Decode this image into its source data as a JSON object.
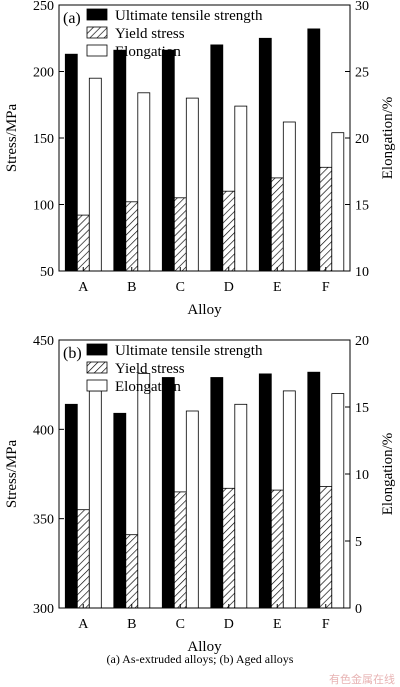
{
  "caption": "(a) As-extruded alloys; (b) Aged alloys",
  "watermark": "有色金属在线",
  "chart_data": [
    {
      "type": "bar",
      "panel_label": "(a)",
      "categories": [
        "A",
        "B",
        "C",
        "D",
        "E",
        "F"
      ],
      "series": [
        {
          "name": "Ultimate tensile strength",
          "axis": "left",
          "fill": "solid",
          "values": [
            213,
            216,
            216,
            220,
            225,
            232
          ]
        },
        {
          "name": "Yield stress",
          "axis": "left",
          "fill": "hatched",
          "values": [
            92,
            102,
            105,
            110,
            120,
            128
          ]
        },
        {
          "name": "Elongation",
          "axis": "right",
          "fill": "open",
          "values": [
            24.5,
            23.4,
            23.0,
            22.4,
            21.2,
            20.4
          ]
        }
      ],
      "xlabel": "Alloy",
      "ylabel": "Stress/MPa",
      "y2label": "Elongation/%",
      "ylim": [
        50,
        250
      ],
      "yticks": [
        50,
        100,
        150,
        200,
        250
      ],
      "y2lim": [
        10,
        30
      ],
      "y2ticks": [
        10,
        15,
        20,
        25,
        30
      ],
      "legend_position": "top-center",
      "grid": false
    },
    {
      "type": "bar",
      "panel_label": "(b)",
      "categories": [
        "A",
        "B",
        "C",
        "D",
        "E",
        "F"
      ],
      "series": [
        {
          "name": "Ultimate tensile strength",
          "axis": "left",
          "fill": "solid",
          "values": [
            414,
            409,
            429,
            429,
            431,
            432
          ]
        },
        {
          "name": "Yield stress",
          "axis": "left",
          "fill": "hatched",
          "values": [
            355,
            341,
            365,
            367,
            366,
            368
          ]
        },
        {
          "name": "Elongation",
          "axis": "right",
          "fill": "open",
          "values": [
            16.2,
            17.5,
            14.7,
            15.2,
            16.2,
            16.0
          ]
        }
      ],
      "xlabel": "Alloy",
      "ylabel": "Stress/MPa",
      "y2label": "Elongation/%",
      "ylim": [
        300,
        450
      ],
      "yticks": [
        300,
        350,
        400,
        450
      ],
      "y2lim": [
        0,
        20
      ],
      "y2ticks": [
        0,
        5,
        10,
        15,
        20
      ],
      "legend_position": "top-center",
      "grid": false
    }
  ]
}
